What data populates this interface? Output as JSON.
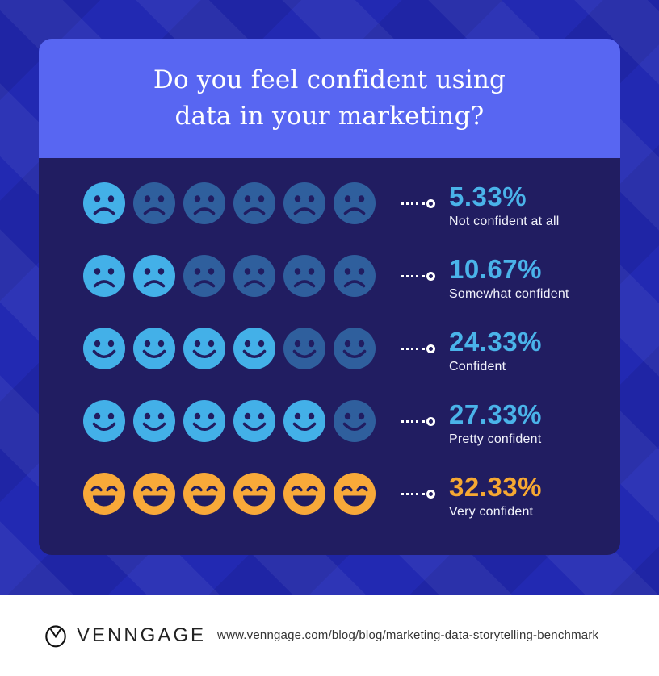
{
  "header": {
    "title_line1": "Do you feel confident using",
    "title_line2": "data in your marketing?"
  },
  "chart_data": {
    "type": "bar",
    "subtype": "pictograph",
    "title": "Do you feel confident using data in your marketing?",
    "categories": [
      "Not confident at all",
      "Somewhat confident",
      "Confident",
      "Pretty confident",
      "Very confident"
    ],
    "values": [
      5.33,
      10.67,
      24.33,
      27.33,
      32.33
    ],
    "unit": "%",
    "icons_per_row": 6,
    "legend_position": "none",
    "rows": [
      {
        "percent": "5.33%",
        "label": "Not confident at all",
        "face": "sad",
        "highlighted": 1,
        "highlight_color": "#43b0e8",
        "dim_color": "#2f5f9d",
        "percent_color": "#4ab3e9"
      },
      {
        "percent": "10.67%",
        "label": "Somewhat confident",
        "face": "sad",
        "highlighted": 2,
        "highlight_color": "#43b0e8",
        "dim_color": "#2f5f9d",
        "percent_color": "#4ab3e9"
      },
      {
        "percent": "24.33%",
        "label": "Confident",
        "face": "smile",
        "highlighted": 4,
        "highlight_color": "#43b0e8",
        "dim_color": "#2f5f9d",
        "percent_color": "#4ab3e9"
      },
      {
        "percent": "27.33%",
        "label": "Pretty confident",
        "face": "smile",
        "highlighted": 5,
        "highlight_color": "#43b0e8",
        "dim_color": "#2f5f9d",
        "percent_color": "#4ab3e9"
      },
      {
        "percent": "32.33%",
        "label": "Very confident",
        "face": "laugh",
        "highlighted": 6,
        "highlight_color": "#f8a939",
        "dim_color": "#f8a939",
        "percent_color": "#f6a832"
      }
    ]
  },
  "colors": {
    "background": "#2229b2",
    "header_card": "#5866f2",
    "panel": "#211d61",
    "face_feature": "#211d61",
    "face_bright_blue": "#43b0e8",
    "face_dim_blue": "#2f5f9d",
    "face_yellow": "#f8a939",
    "percent_blue": "#4ab3e9",
    "percent_orange": "#f6a832",
    "label_text": "#f2f3fc",
    "footer_background": "#ffffff",
    "footer_text": "#333333"
  },
  "footer": {
    "brand": "VENNGAGE",
    "url": "www.venngage.com/blog/blog/marketing-data-storytelling-benchmark"
  }
}
